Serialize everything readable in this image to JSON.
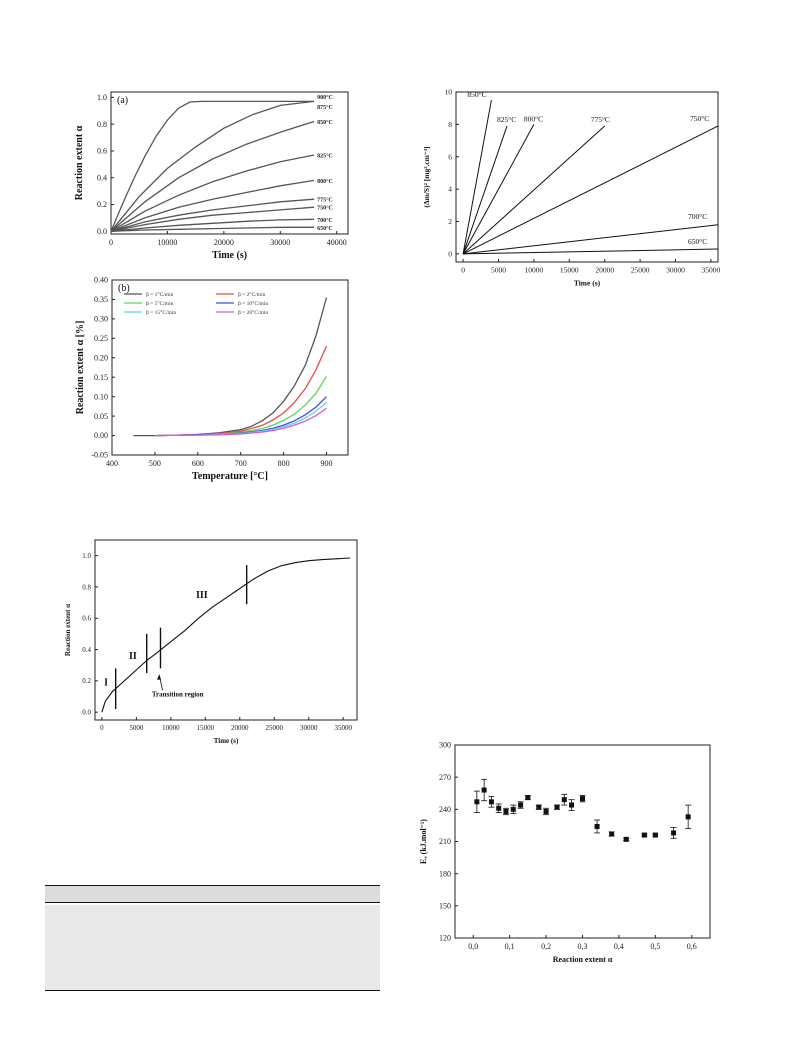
{
  "chart_data": [
    {
      "id": "a",
      "type": "line",
      "panel_label": "(a)",
      "xlabel": "Time (s)",
      "ylabel": "Reaction extent α",
      "xlim": [
        0,
        42000
      ],
      "ylim": [
        -0.02,
        1.04
      ],
      "xticks": [
        "0",
        "10000",
        "20000",
        "30000",
        "40000"
      ],
      "yticks": [
        "0.0",
        "0.2",
        "0.4",
        "0.6",
        "0.8",
        "1.0"
      ],
      "series": [
        {
          "name": "900°C",
          "x": [
            0,
            2000,
            4000,
            6000,
            8000,
            10000,
            12000,
            14000,
            16000,
            20000,
            30000,
            36000
          ],
          "y": [
            0,
            0.2,
            0.39,
            0.56,
            0.71,
            0.83,
            0.92,
            0.965,
            0.97,
            0.97,
            0.97,
            0.97
          ]
        },
        {
          "name": "875°C",
          "x": [
            0,
            5000,
            10000,
            15000,
            20000,
            25000,
            30000,
            36000
          ],
          "y": [
            0,
            0.26,
            0.47,
            0.63,
            0.77,
            0.87,
            0.94,
            0.97
          ]
        },
        {
          "name": "850°C",
          "x": [
            0,
            6000,
            12000,
            18000,
            24000,
            30000,
            36000
          ],
          "y": [
            0,
            0.22,
            0.4,
            0.54,
            0.65,
            0.74,
            0.82
          ]
        },
        {
          "name": "825°C",
          "x": [
            0,
            6000,
            12000,
            18000,
            24000,
            30000,
            36000
          ],
          "y": [
            0,
            0.15,
            0.27,
            0.37,
            0.45,
            0.52,
            0.57
          ]
        },
        {
          "name": "800°C",
          "x": [
            0,
            6000,
            12000,
            18000,
            24000,
            30000,
            36000
          ],
          "y": [
            0,
            0.1,
            0.18,
            0.24,
            0.29,
            0.34,
            0.38
          ]
        },
        {
          "name": "775°C",
          "x": [
            0,
            6000,
            12000,
            18000,
            24000,
            30000,
            36000
          ],
          "y": [
            0,
            0.07,
            0.12,
            0.16,
            0.19,
            0.22,
            0.24
          ]
        },
        {
          "name": "750°C",
          "x": [
            0,
            6000,
            12000,
            18000,
            24000,
            30000,
            36000
          ],
          "y": [
            0,
            0.05,
            0.09,
            0.12,
            0.14,
            0.16,
            0.18
          ]
        },
        {
          "name": "700°C",
          "x": [
            0,
            6000,
            12000,
            18000,
            24000,
            30000,
            36000
          ],
          "y": [
            0,
            0.025,
            0.045,
            0.06,
            0.075,
            0.085,
            0.09
          ]
        },
        {
          "name": "650°C",
          "x": [
            0,
            6000,
            12000,
            18000,
            24000,
            30000,
            36000
          ],
          "y": [
            0,
            0.01,
            0.015,
            0.02,
            0.025,
            0.03,
            0.03
          ]
        }
      ]
    },
    {
      "id": "b",
      "type": "line",
      "panel_label": "(b)",
      "xlabel": "Temperature [°C]",
      "ylabel": "Reaction extent α [%]",
      "xlim": [
        400,
        950
      ],
      "ylim": [
        -0.05,
        0.4
      ],
      "xticks": [
        "400",
        "500",
        "600",
        "700",
        "800",
        "900"
      ],
      "yticks": [
        "-0.05",
        "0.00",
        "0.05",
        "0.10",
        "0.15",
        "0.20",
        "0.25",
        "0.30",
        "0.35",
        "0.40"
      ],
      "series": [
        {
          "name": "β = 1°C/min",
          "color": "#555555",
          "x": [
            450,
            500,
            550,
            600,
            650,
            700,
            725,
            750,
            775,
            800,
            825,
            850,
            875,
            900
          ],
          "y": [
            0,
            0,
            0.001,
            0.003,
            0.007,
            0.015,
            0.024,
            0.038,
            0.058,
            0.088,
            0.128,
            0.18,
            0.255,
            0.355
          ]
        },
        {
          "name": "β = 2°C/min",
          "color": "#e84a4a",
          "x": [
            500,
            550,
            600,
            650,
            700,
            750,
            775,
            800,
            825,
            850,
            875,
            900
          ],
          "y": [
            0,
            0.001,
            0.002,
            0.005,
            0.011,
            0.026,
            0.04,
            0.058,
            0.085,
            0.12,
            0.168,
            0.23
          ]
        },
        {
          "name": "β = 5°C/min",
          "color": "#5ad65a",
          "x": [
            500,
            550,
            600,
            650,
            700,
            750,
            775,
            800,
            825,
            850,
            875,
            900
          ],
          "y": [
            0,
            0.001,
            0.002,
            0.004,
            0.008,
            0.018,
            0.027,
            0.039,
            0.055,
            0.078,
            0.108,
            0.152
          ]
        },
        {
          "name": "β = 10°C/min",
          "color": "#4a4ae8",
          "x": [
            500,
            550,
            600,
            650,
            700,
            750,
            775,
            800,
            825,
            850,
            875,
            900
          ],
          "y": [
            0,
            0.001,
            0.002,
            0.003,
            0.006,
            0.013,
            0.019,
            0.027,
            0.038,
            0.053,
            0.073,
            0.1
          ]
        },
        {
          "name": "β = 15°C/min",
          "color": "#5ad6e8",
          "x": [
            500,
            550,
            600,
            650,
            700,
            750,
            775,
            800,
            825,
            850,
            875,
            900
          ],
          "y": [
            0,
            0.001,
            0.001,
            0.003,
            0.005,
            0.011,
            0.016,
            0.023,
            0.032,
            0.045,
            0.062,
            0.085
          ]
        },
        {
          "name": "β = 20°C/min",
          "color": "#d65ad6",
          "x": [
            500,
            550,
            600,
            650,
            700,
            750,
            775,
            800,
            825,
            850,
            875,
            900
          ],
          "y": [
            0,
            0.001,
            0.001,
            0.002,
            0.004,
            0.009,
            0.013,
            0.019,
            0.027,
            0.037,
            0.051,
            0.07
          ]
        }
      ]
    },
    {
      "id": "c",
      "type": "line",
      "xlabel": "Time (s)",
      "ylabel": "(Δm/S)² [mg².cm⁻⁴]",
      "xlim": [
        -1000,
        36000
      ],
      "ylim": [
        -0.5,
        10
      ],
      "xticks": [
        "0",
        "5000",
        "10000",
        "15000",
        "20000",
        "25000",
        "30000",
        "35000"
      ],
      "yticks": [
        "0",
        "2",
        "4",
        "6",
        "8",
        "10"
      ],
      "series": [
        {
          "name": "850°C",
          "x": [
            0,
            4000
          ],
          "y": [
            0,
            9.5
          ]
        },
        {
          "name": "825°C",
          "x": [
            0,
            6200
          ],
          "y": [
            0,
            7.9
          ]
        },
        {
          "name": "800°C",
          "x": [
            0,
            10000
          ],
          "y": [
            0,
            8.0
          ]
        },
        {
          "name": "775°C",
          "x": [
            0,
            20000
          ],
          "y": [
            0,
            7.9
          ]
        },
        {
          "name": "750°C",
          "x": [
            0,
            36000
          ],
          "y": [
            0,
            7.9
          ]
        },
        {
          "name": "700°C",
          "x": [
            0,
            36000
          ],
          "y": [
            0,
            1.8
          ]
        },
        {
          "name": "650°C",
          "x": [
            0,
            36000
          ],
          "y": [
            0,
            0.3
          ]
        }
      ]
    },
    {
      "id": "d",
      "type": "line",
      "xlabel": "Time (s)",
      "ylabel": "Reaction extent α",
      "xlim": [
        -1000,
        37000
      ],
      "ylim": [
        -0.05,
        1.1
      ],
      "xticks": [
        "0",
        "5000",
        "10000",
        "15000",
        "20000",
        "25000",
        "30000",
        "35000"
      ],
      "yticks": [
        "0.0",
        "0.2",
        "0.4",
        "0.6",
        "0.8",
        "1.0"
      ],
      "series": [
        {
          "x": [
            0,
            500,
            1000,
            1500,
            2000,
            3000,
            4000,
            5000,
            6500,
            8000,
            10000,
            12000,
            14000,
            16000,
            18000,
            20000,
            22000,
            24000,
            26000,
            28000,
            30000,
            32000,
            34000,
            36000
          ],
          "y": [
            0,
            0.07,
            0.1,
            0.13,
            0.15,
            0.19,
            0.23,
            0.27,
            0.33,
            0.38,
            0.45,
            0.52,
            0.6,
            0.67,
            0.73,
            0.79,
            0.85,
            0.9,
            0.935,
            0.955,
            0.968,
            0.975,
            0.98,
            0.985
          ]
        }
      ],
      "boundaries": [
        {
          "x": 2000,
          "y_low": 0.02,
          "y_high": 0.28
        },
        {
          "x": 6500,
          "y_low": 0.25,
          "y_high": 0.5
        },
        {
          "x": 8500,
          "y_low": 0.28,
          "y_high": 0.54
        },
        {
          "x": 21000,
          "y_low": 0.69,
          "y_high": 0.94
        }
      ],
      "annotations": [
        {
          "text": "I",
          "x": 600,
          "y": 0.17
        },
        {
          "text": "II",
          "x": 4500,
          "y": 0.34
        },
        {
          "text": "III",
          "x": 14500,
          "y": 0.73
        },
        {
          "text": "Transition region",
          "x": 11000,
          "y": 0.1
        }
      ]
    },
    {
      "id": "e",
      "type": "scatter",
      "xlabel": "Reaction extent α",
      "ylabel": "Eₐ (kJ.mol⁻¹)",
      "xlim": [
        -0.05,
        0.65
      ],
      "ylim": [
        120,
        300
      ],
      "xticks": [
        "0,0",
        "0,1",
        "0,2",
        "0,3",
        "0,4",
        "0,5",
        "0,6"
      ],
      "yticks": [
        "120",
        "150",
        "180",
        "210",
        "240",
        "270",
        "300"
      ],
      "points": [
        {
          "x": 0.01,
          "y": 247,
          "err": 10
        },
        {
          "x": 0.03,
          "y": 258,
          "err": 10
        },
        {
          "x": 0.05,
          "y": 247,
          "err": 5
        },
        {
          "x": 0.07,
          "y": 241,
          "err": 4
        },
        {
          "x": 0.09,
          "y": 238,
          "err": 3
        },
        {
          "x": 0.11,
          "y": 240,
          "err": 4
        },
        {
          "x": 0.13,
          "y": 244,
          "err": 3
        },
        {
          "x": 0.15,
          "y": 251,
          "err": 2
        },
        {
          "x": 0.18,
          "y": 242,
          "err": 2
        },
        {
          "x": 0.2,
          "y": 238,
          "err": 3
        },
        {
          "x": 0.23,
          "y": 242,
          "err": 2
        },
        {
          "x": 0.25,
          "y": 249,
          "err": 5
        },
        {
          "x": 0.27,
          "y": 244,
          "err": 5
        },
        {
          "x": 0.3,
          "y": 250,
          "err": 3
        },
        {
          "x": 0.34,
          "y": 224,
          "err": 6
        },
        {
          "x": 0.38,
          "y": 217,
          "err": 2
        },
        {
          "x": 0.42,
          "y": 212,
          "err": 1
        },
        {
          "x": 0.47,
          "y": 216,
          "err": 1
        },
        {
          "x": 0.5,
          "y": 216,
          "err": 1
        },
        {
          "x": 0.55,
          "y": 218,
          "err": 5
        },
        {
          "x": 0.59,
          "y": 233,
          "err": 11
        }
      ]
    }
  ]
}
